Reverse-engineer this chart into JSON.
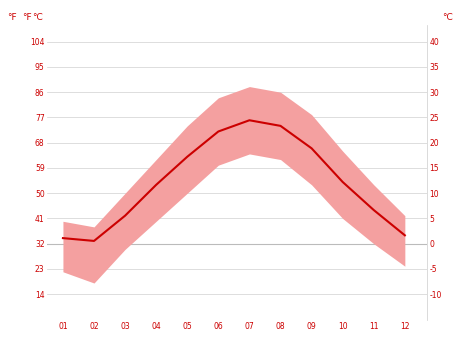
{
  "months": [
    1,
    2,
    3,
    4,
    5,
    6,
    7,
    8,
    9,
    10,
    11,
    12
  ],
  "month_labels": [
    "01",
    "02",
    "03",
    "04",
    "05",
    "06",
    "07",
    "08",
    "09",
    "10",
    "11",
    "12"
  ],
  "avg_temp_f": [
    34.0,
    33.0,
    42.0,
    53.0,
    63.0,
    72.0,
    76.0,
    74.0,
    66.0,
    54.0,
    44.0,
    35.0
  ],
  "max_temp_f": [
    40.0,
    38.0,
    50.0,
    62.0,
    74.0,
    84.0,
    88.0,
    86.0,
    78.0,
    65.0,
    53.0,
    42.0
  ],
  "min_temp_f": [
    22.0,
    18.0,
    30.0,
    40.0,
    50.0,
    60.0,
    64.0,
    62.0,
    53.0,
    41.0,
    32.0,
    24.0
  ],
  "line_color": "#cc0000",
  "band_color": "#f4a0a0",
  "background_color": "#ffffff",
  "grid_color": "#d0d0d0",
  "ylabel_left": "°F",
  "ylabel_right": "°C",
  "yticks_f": [
    14,
    23,
    32,
    41,
    50,
    59,
    68,
    77,
    86,
    95,
    104
  ],
  "yticks_c": [
    -10,
    -5,
    0,
    5,
    10,
    15,
    20,
    25,
    30,
    35,
    40
  ],
  "ylim_f": [
    5,
    110
  ],
  "axis_label_color": "#cc0000",
  "zero_line_color": "#bbbbbb",
  "tick_fontsize": 5.5,
  "unit_fontsize": 6.5
}
